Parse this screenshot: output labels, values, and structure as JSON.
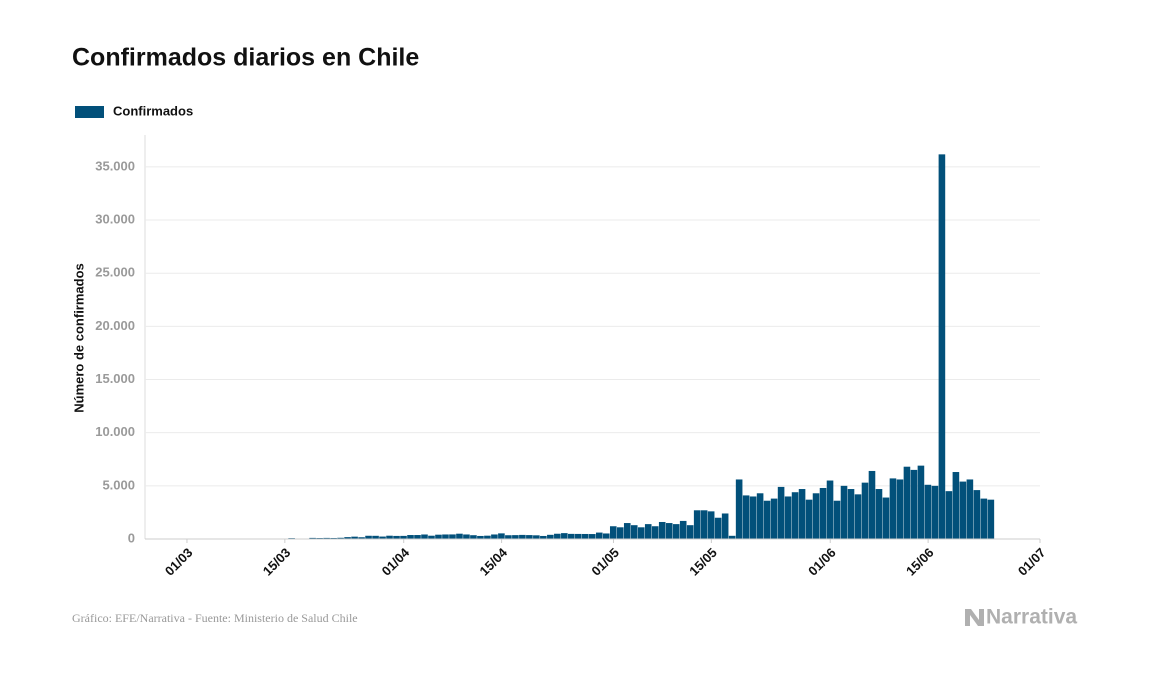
{
  "chart_data": {
    "type": "bar",
    "title": "Confirmados diarios en Chile",
    "ylabel": "Número de confirmados",
    "source": "Gráfico: EFE/Narrativa - Fuente: Ministerio de Salud Chile",
    "logo": "Narrativa",
    "series": [
      {
        "name": "Confirmados",
        "color": "#02507a",
        "values": [
          1,
          2,
          1,
          1,
          2,
          3,
          3,
          4,
          6,
          10,
          10,
          18,
          14,
          81,
          45,
          37,
          104,
          92,
          103,
          95,
          114,
          176,
          220,
          164,
          304,
          299,
          230,
          310,
          289,
          293,
          373,
          373,
          424,
          310,
          405,
          426,
          430,
          499,
          426,
          357,
          286,
          312,
          426,
          529,
          355,
          364,
          385,
          368,
          346,
          286,
          393,
          494,
          552,
          482,
          477,
          473,
          466,
          604,
          520,
          1200,
          1100,
          1500,
          1300,
          1100,
          1400,
          1200,
          1600,
          1500,
          1400,
          1700,
          1300,
          2700,
          2700,
          2600,
          2000,
          2400,
          300,
          5600,
          4100,
          4000,
          4300,
          3600,
          3800,
          4900,
          4000,
          4400,
          4700,
          3700,
          4300,
          4800,
          5500,
          3600,
          5000,
          4700,
          4200,
          5300,
          6400,
          4700,
          3900,
          5700,
          5600,
          6800,
          6500,
          6900,
          5100,
          5000,
          36179,
          4500,
          6300,
          5400,
          5600,
          4600,
          3800,
          3700
        ]
      }
    ],
    "x": [
      "03/03",
      "04/03",
      "05/03",
      "06/03",
      "07/03",
      "08/03",
      "09/03",
      "10/03",
      "11/03",
      "12/03",
      "13/03",
      "14/03",
      "15/03",
      "16/03",
      "17/03",
      "18/03",
      "19/03",
      "20/03",
      "21/03",
      "22/03",
      "23/03",
      "24/03",
      "25/03",
      "26/03",
      "27/03",
      "28/03",
      "29/03",
      "30/03",
      "31/03",
      "01/04",
      "02/04",
      "03/04",
      "04/04",
      "05/04",
      "06/04",
      "07/04",
      "08/04",
      "09/04",
      "10/04",
      "11/04",
      "12/04",
      "13/04",
      "14/04",
      "15/04",
      "16/04",
      "17/04",
      "18/04",
      "19/04",
      "20/04",
      "21/04",
      "22/04",
      "23/04",
      "24/04",
      "25/04",
      "26/04",
      "27/04",
      "28/04",
      "29/04",
      "30/04",
      "01/05",
      "02/05",
      "03/05",
      "04/05",
      "05/05",
      "06/05",
      "07/05",
      "08/05",
      "09/05",
      "10/05",
      "11/05",
      "12/05",
      "13/05",
      "14/05",
      "15/05",
      "16/05",
      "17/05",
      "18/05",
      "19/05",
      "20/05",
      "21/05",
      "22/05",
      "23/05",
      "24/05",
      "25/05",
      "26/05",
      "27/05",
      "28/05",
      "29/05",
      "30/05",
      "31/05",
      "01/06",
      "02/06",
      "03/06",
      "04/06",
      "05/06",
      "06/06",
      "07/06",
      "08/06",
      "09/06",
      "10/06",
      "11/06",
      "12/06",
      "13/06",
      "14/06",
      "15/06",
      "16/06",
      "17/06",
      "18/06",
      "19/06",
      "20/06",
      "21/06",
      "22/06",
      "23/06",
      "24/06"
    ],
    "xlim": [
      "24/02",
      "01/07"
    ],
    "xticks": [
      "01/03",
      "15/03",
      "01/04",
      "15/04",
      "01/05",
      "15/05",
      "01/06",
      "15/06",
      "01/07"
    ],
    "ylim": [
      0,
      38000
    ],
    "yticks": [
      0,
      {
        "value": 5000,
        "label": "5.000"
      },
      {
        "value": 10000,
        "label": "10.000"
      },
      {
        "value": 15000,
        "label": "15.000"
      },
      {
        "value": 20000,
        "label": "20.000"
      },
      {
        "value": 25000,
        "label": "25.000"
      },
      {
        "value": 30000,
        "label": "30.000"
      },
      {
        "value": 35000,
        "label": "35.000"
      }
    ],
    "grid": true
  }
}
